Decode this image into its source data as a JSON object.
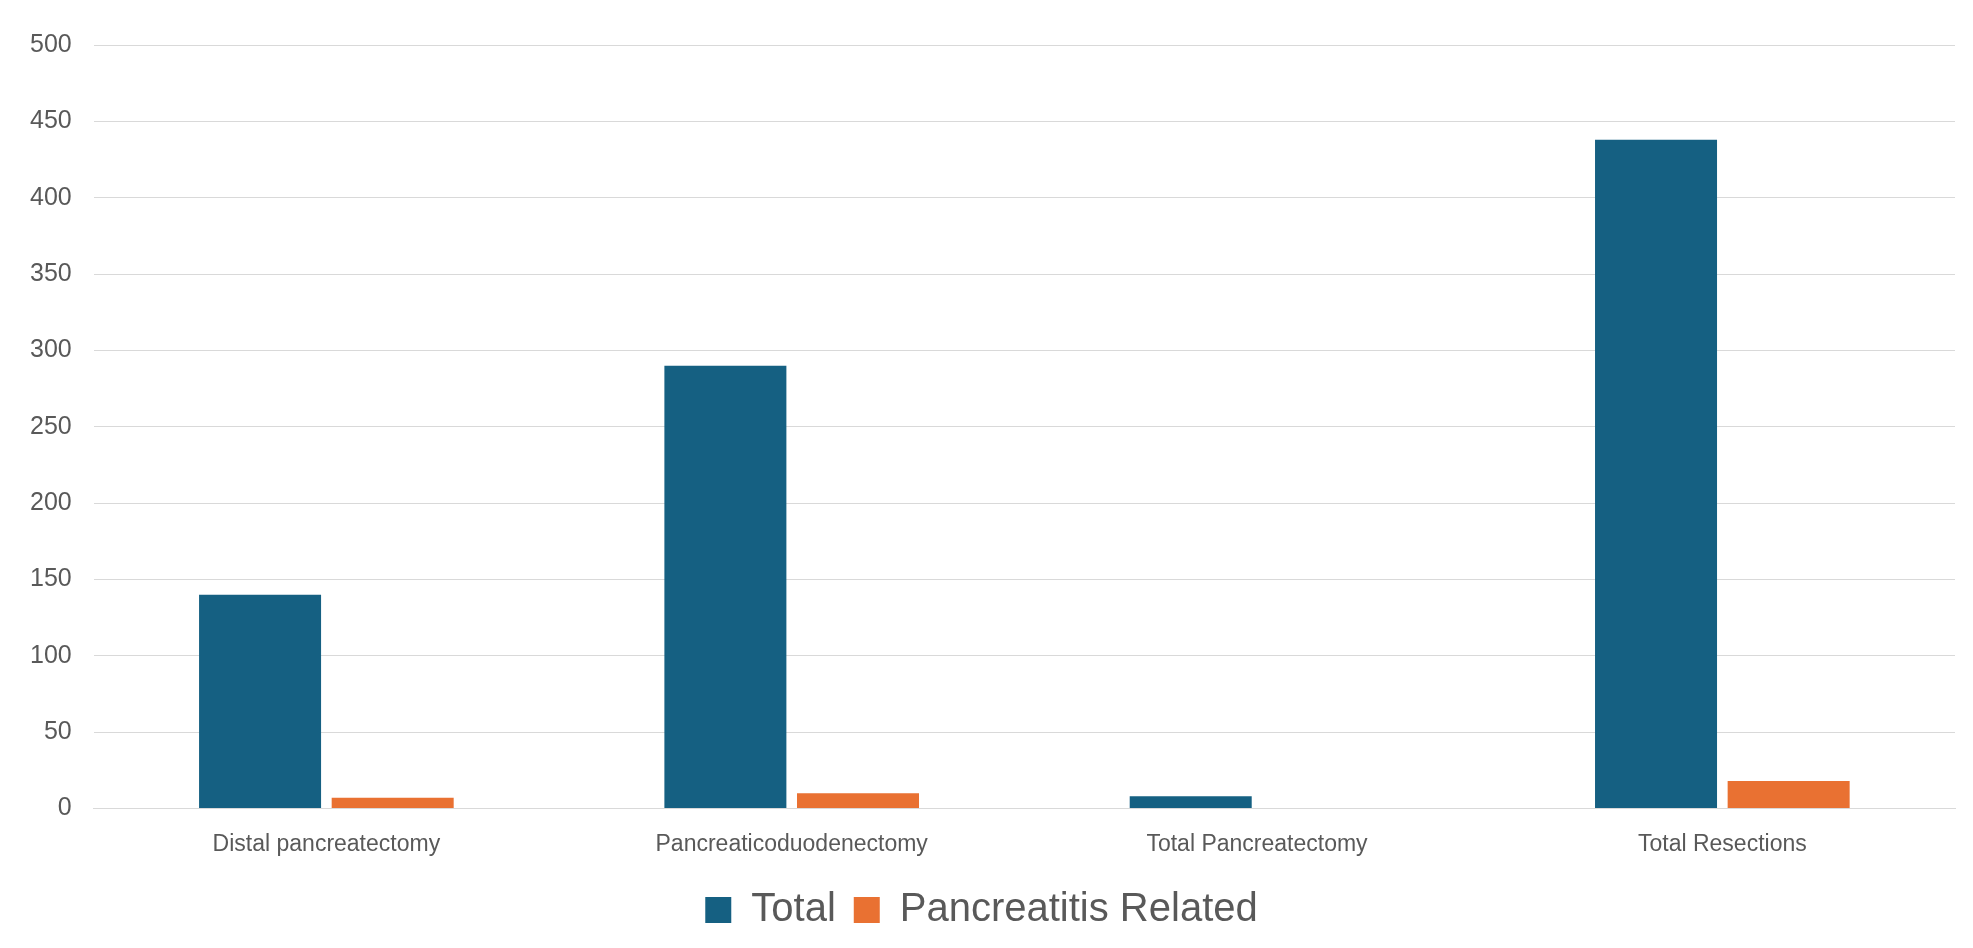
{
  "chart_data": {
    "type": "bar",
    "categories": [
      "Distal pancreatectomy",
      "Pancreaticoduodenectomy",
      "Total Pancreatectomy",
      "Total Resections"
    ],
    "series": [
      {
        "name": "Total",
        "color": "#156082",
        "values": [
          140,
          290,
          8,
          438
        ]
      },
      {
        "name": "Pancreatitis Related",
        "color": "#e97132",
        "values": [
          7,
          10,
          0,
          18
        ]
      }
    ],
    "ylim": [
      0,
      500
    ],
    "yticks": [
      0,
      50,
      100,
      150,
      200,
      250,
      300,
      350,
      400,
      450,
      500
    ],
    "grid": "y",
    "legend": "bottom"
  }
}
